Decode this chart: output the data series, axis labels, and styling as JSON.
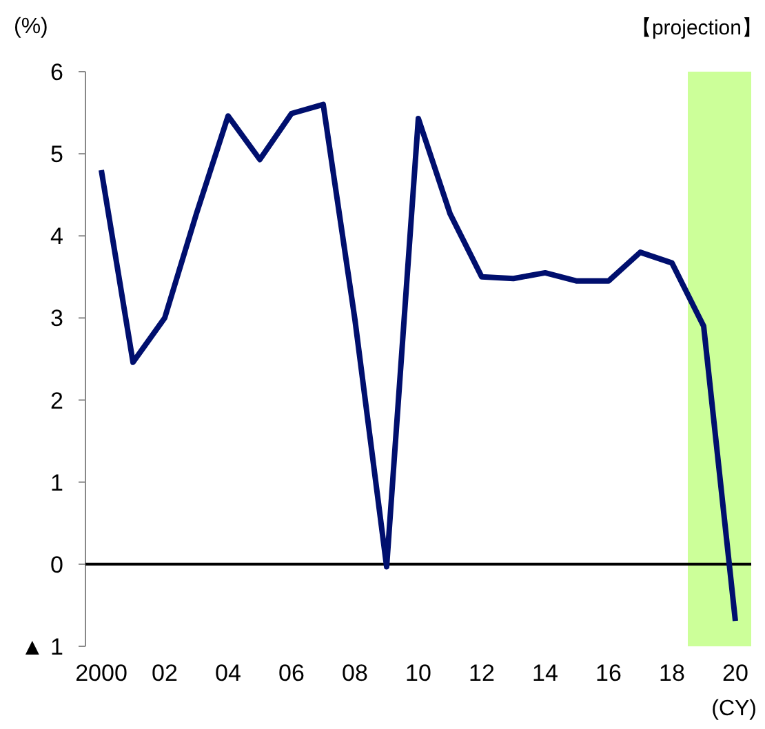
{
  "chart_data": {
    "type": "line",
    "ylabel": "(%)",
    "xlabel": "(CY)",
    "x": [
      2000,
      2001,
      2002,
      2003,
      2004,
      2005,
      2006,
      2007,
      2008,
      2009,
      2010,
      2011,
      2012,
      2013,
      2014,
      2015,
      2016,
      2017,
      2018,
      2019,
      2020
    ],
    "series": [
      {
        "color": "#000f6e",
        "values": [
          4.8,
          2.46,
          3.0,
          4.27,
          5.46,
          4.93,
          5.49,
          5.6,
          2.98,
          -0.03,
          5.43,
          4.27,
          3.5,
          3.48,
          3.55,
          3.45,
          3.45,
          3.8,
          3.67,
          2.9,
          -0.69
        ]
      }
    ],
    "xlim": [
      1999.5,
      2020.5
    ],
    "xticks": [
      {
        "value": 2000,
        "label": "2000"
      },
      {
        "value": 2002,
        "label": "02"
      },
      {
        "value": 2004,
        "label": "04"
      },
      {
        "value": 2006,
        "label": "06"
      },
      {
        "value": 2008,
        "label": "08"
      },
      {
        "value": 2010,
        "label": "10"
      },
      {
        "value": 2012,
        "label": "12"
      },
      {
        "value": 2014,
        "label": "14"
      },
      {
        "value": 2016,
        "label": "16"
      },
      {
        "value": 2018,
        "label": "18"
      },
      {
        "value": 2020,
        "label": "20"
      }
    ],
    "ylim": [
      -1,
      6
    ],
    "yticks": [
      {
        "value": -1,
        "label": "▲ 1"
      },
      0,
      1,
      2,
      3,
      4,
      5,
      6
    ],
    "ref_lines": [
      {
        "axis": "y",
        "value": 0,
        "color": "#000000"
      }
    ],
    "bands": [
      {
        "axis": "x",
        "from": 2018.5,
        "to": 2020.5,
        "label": "【projection】",
        "color": "#ccff99"
      }
    ],
    "grid": false,
    "marker": "none",
    "line_style": "solid"
  }
}
